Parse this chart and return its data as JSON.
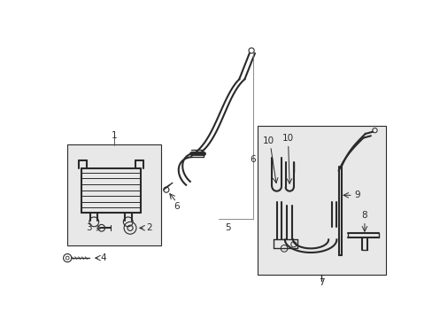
{
  "bg_color": "#ffffff",
  "line_color": "#2a2a2a",
  "box_fill": "#e8e8e8",
  "fig_width": 4.89,
  "fig_height": 3.6,
  "dpi": 100
}
